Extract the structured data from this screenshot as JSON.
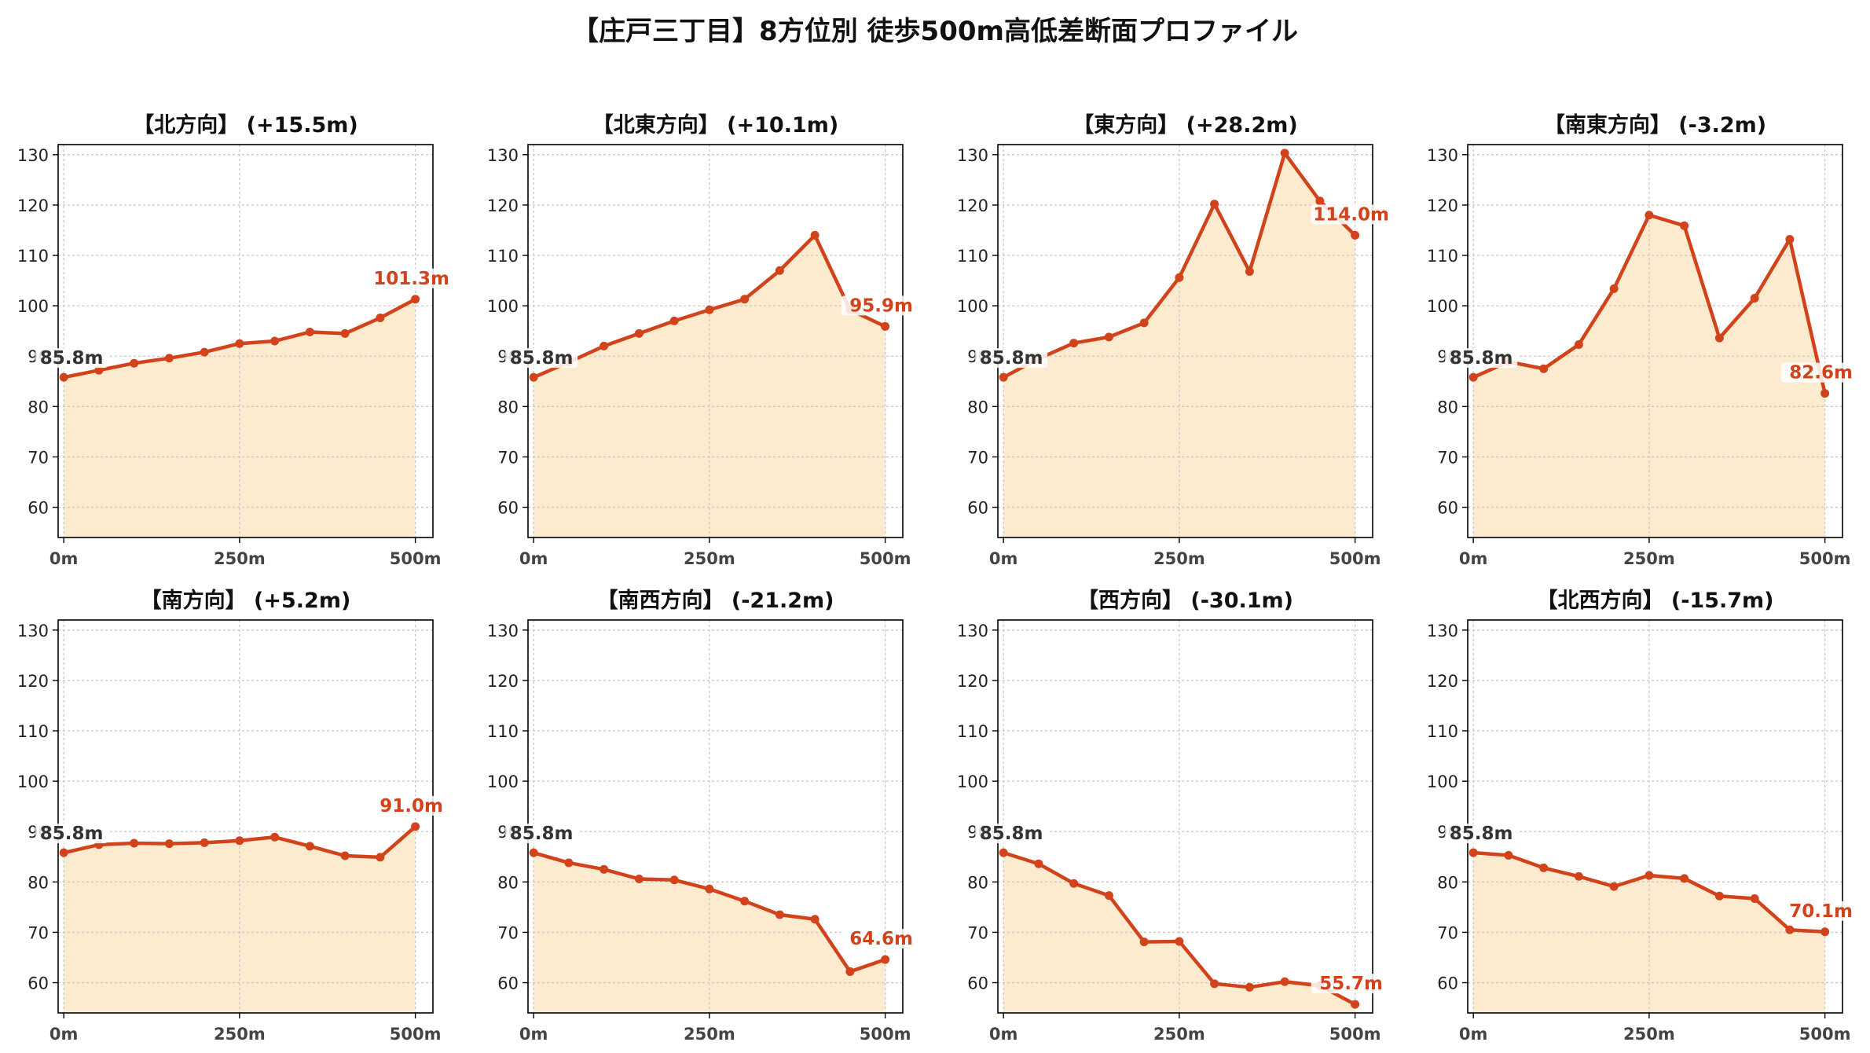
{
  "page": {
    "title": "【庄戸三丁目】8方位別 徒歩500m高低差断面プロファイル"
  },
  "style": {
    "line_color": "#d2431b",
    "fill_color": "#fdebd0",
    "grid_color": "#c8c8c8",
    "start_label_color": "#333333",
    "end_label_color": "#d2431b"
  },
  "chart_data": [
    {
      "type": "area",
      "title": "【北方向】 (+15.5m)",
      "x_ticks": [
        "0m",
        "250m",
        "500m"
      ],
      "y_ticks": [
        60,
        70,
        80,
        90,
        100,
        110,
        120,
        130
      ],
      "xlim": [
        -8,
        525
      ],
      "ylim": [
        54,
        132
      ],
      "grid": true,
      "x": [
        0,
        50,
        100,
        150,
        200,
        250,
        300,
        350,
        400,
        450,
        500
      ],
      "values": [
        85.8,
        87.2,
        88.6,
        89.6,
        90.8,
        92.5,
        93.0,
        94.8,
        94.5,
        97.6,
        101.3
      ],
      "start_label": "85.8m",
      "end_label": "101.3m"
    },
    {
      "type": "area",
      "title": "【北東方向】 (+10.1m)",
      "x_ticks": [
        "0m",
        "250m",
        "500m"
      ],
      "y_ticks": [
        60,
        70,
        80,
        90,
        100,
        110,
        120,
        130
      ],
      "xlim": [
        -8,
        525
      ],
      "ylim": [
        54,
        132
      ],
      "grid": true,
      "x": [
        0,
        50,
        100,
        150,
        200,
        250,
        300,
        350,
        400,
        450,
        500
      ],
      "values": [
        85.8,
        88.8,
        92.0,
        94.5,
        97.0,
        99.2,
        101.3,
        107.0,
        114.0,
        99.2,
        95.9
      ],
      "start_label": "85.8m",
      "end_label": "95.9m"
    },
    {
      "type": "area",
      "title": "【東方向】 (+28.2m)",
      "x_ticks": [
        "0m",
        "250m",
        "500m"
      ],
      "y_ticks": [
        60,
        70,
        80,
        90,
        100,
        110,
        120,
        130
      ],
      "xlim": [
        -8,
        525
      ],
      "ylim": [
        54,
        132
      ],
      "grid": true,
      "x": [
        0,
        50,
        100,
        150,
        200,
        250,
        300,
        350,
        400,
        450,
        500
      ],
      "values": [
        85.8,
        89.5,
        92.6,
        93.8,
        96.6,
        105.6,
        120.2,
        106.8,
        130.3,
        120.8,
        114.0
      ],
      "start_label": "85.8m",
      "end_label": "114.0m"
    },
    {
      "type": "area",
      "title": "【南東方向】 (-3.2m)",
      "x_ticks": [
        "0m",
        "250m",
        "500m"
      ],
      "y_ticks": [
        60,
        70,
        80,
        90,
        100,
        110,
        120,
        130
      ],
      "xlim": [
        -8,
        525
      ],
      "ylim": [
        54,
        132
      ],
      "grid": true,
      "x": [
        0,
        50,
        100,
        150,
        200,
        250,
        300,
        350,
        400,
        450,
        500
      ],
      "values": [
        85.8,
        88.9,
        87.5,
        92.3,
        103.4,
        118.0,
        115.9,
        93.6,
        101.5,
        113.2,
        82.6
      ],
      "start_label": "85.8m",
      "end_label": "82.6m"
    },
    {
      "type": "area",
      "title": "【南方向】 (+5.2m)",
      "x_ticks": [
        "0m",
        "250m",
        "500m"
      ],
      "y_ticks": [
        60,
        70,
        80,
        90,
        100,
        110,
        120,
        130
      ],
      "xlim": [
        -8,
        525
      ],
      "ylim": [
        54,
        132
      ],
      "grid": true,
      "x": [
        0,
        50,
        100,
        150,
        200,
        250,
        300,
        350,
        400,
        450,
        500
      ],
      "values": [
        85.8,
        87.4,
        87.7,
        87.6,
        87.8,
        88.2,
        88.9,
        87.1,
        85.2,
        84.9,
        91.0
      ],
      "start_label": "85.8m",
      "end_label": "91.0m"
    },
    {
      "type": "area",
      "title": "【南西方向】 (-21.2m)",
      "x_ticks": [
        "0m",
        "250m",
        "500m"
      ],
      "y_ticks": [
        60,
        70,
        80,
        90,
        100,
        110,
        120,
        130
      ],
      "xlim": [
        -8,
        525
      ],
      "ylim": [
        54,
        132
      ],
      "grid": true,
      "x": [
        0,
        50,
        100,
        150,
        200,
        250,
        300,
        350,
        400,
        450,
        500
      ],
      "values": [
        85.8,
        83.8,
        82.5,
        80.6,
        80.4,
        78.6,
        76.2,
        73.5,
        72.6,
        62.2,
        64.6
      ],
      "start_label": "85.8m",
      "end_label": "64.6m"
    },
    {
      "type": "area",
      "title": "【西方向】 (-30.1m)",
      "x_ticks": [
        "0m",
        "250m",
        "500m"
      ],
      "y_ticks": [
        60,
        70,
        80,
        90,
        100,
        110,
        120,
        130
      ],
      "xlim": [
        -8,
        525
      ],
      "ylim": [
        54,
        132
      ],
      "grid": true,
      "x": [
        0,
        50,
        100,
        150,
        200,
        250,
        300,
        350,
        400,
        450,
        500
      ],
      "values": [
        85.8,
        83.6,
        79.7,
        77.3,
        68.1,
        68.2,
        59.8,
        59.1,
        60.2,
        59.4,
        55.7
      ],
      "start_label": "85.8m",
      "end_label": "55.7m"
    },
    {
      "type": "area",
      "title": "【北西方向】 (-15.7m)",
      "x_ticks": [
        "0m",
        "250m",
        "500m"
      ],
      "y_ticks": [
        60,
        70,
        80,
        90,
        100,
        110,
        120,
        130
      ],
      "xlim": [
        -8,
        525
      ],
      "ylim": [
        54,
        132
      ],
      "grid": true,
      "x": [
        0,
        50,
        100,
        150,
        200,
        250,
        300,
        350,
        400,
        450,
        500
      ],
      "values": [
        85.8,
        85.3,
        82.8,
        81.1,
        79.1,
        81.3,
        80.7,
        77.2,
        76.7,
        70.5,
        70.1
      ],
      "start_label": "85.8m",
      "end_label": "70.1m"
    }
  ]
}
